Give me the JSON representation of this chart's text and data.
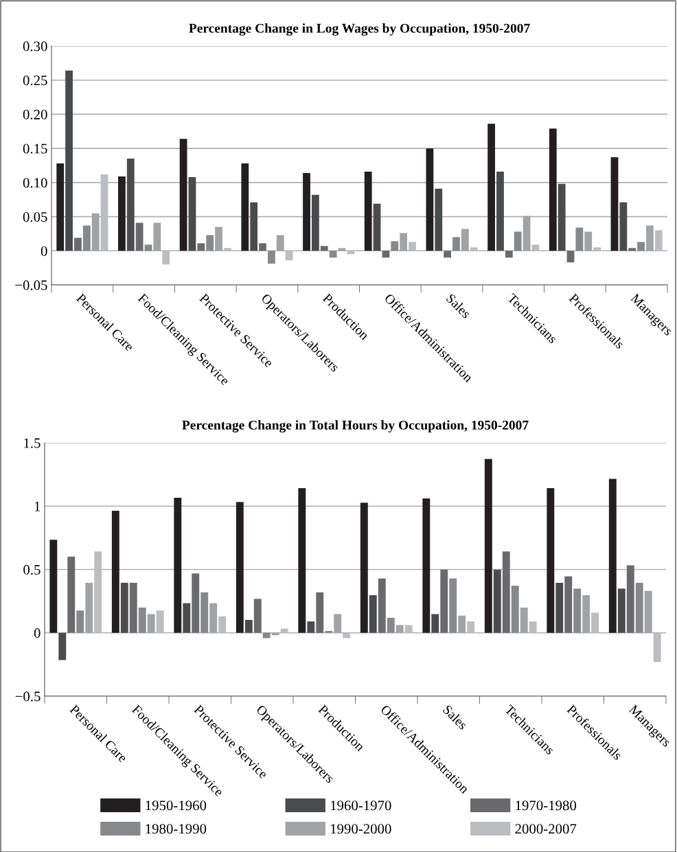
{
  "chart_data": [
    {
      "type": "bar",
      "title": "Percentage Change in Log Wages by Occupation, 1950-2007",
      "categories": [
        "Personal Care",
        "Food/Cleaning Service",
        "Protective Service",
        "Operators/Laborers",
        "Production",
        "Office/Administration",
        "Sales",
        "Technicians",
        "Professionals",
        "Managers"
      ],
      "series": [
        {
          "color": "#231f20",
          "values": [
            0.128,
            0.109,
            0.164,
            0.128,
            0.114,
            0.116,
            0.15,
            0.186,
            0.179,
            0.137
          ]
        },
        {
          "color": "#4a4b4d",
          "values": [
            0.264,
            0.135,
            0.108,
            0.071,
            0.082,
            0.069,
            0.091,
            0.116,
            0.098,
            0.071
          ]
        },
        {
          "color": "#6a6a6c",
          "values": [
            0.019,
            0.041,
            0.011,
            0.011,
            0.007,
            -0.01,
            -0.01,
            -0.01,
            -0.017,
            0.004
          ]
        },
        {
          "color": "#87888b",
          "values": [
            0.037,
            0.009,
            0.023,
            -0.019,
            -0.01,
            0.014,
            0.02,
            0.028,
            0.034,
            0.013
          ]
        },
        {
          "color": "#a2a3a6",
          "values": [
            0.055,
            0.041,
            0.035,
            0.023,
            0.004,
            0.026,
            0.032,
            0.051,
            0.028,
            0.037
          ]
        },
        {
          "color": "#bcbdc0",
          "values": [
            0.112,
            -0.02,
            0.004,
            -0.014,
            -0.005,
            0.013,
            0.005,
            0.009,
            0.005,
            0.03
          ]
        }
      ],
      "ylim": [
        -0.05,
        0.3
      ],
      "yticks": [
        {
          "value": -0.05,
          "label": "−0.05"
        },
        0,
        {
          "value": 0.05,
          "label": "0.05"
        },
        {
          "value": 0.1,
          "label": "0.10"
        },
        {
          "value": 0.15,
          "label": "0.15"
        },
        {
          "value": 0.2,
          "label": "0.20"
        },
        {
          "value": 0.25,
          "label": "0.25"
        },
        {
          "value": 0.3,
          "label": "0.30"
        }
      ],
      "grid": "y"
    },
    {
      "type": "bar",
      "title": "Percentage Change in Total Hours by Occupation, 1950-2007",
      "categories": [
        "Personal Care",
        "Food/Cleaning Service",
        "Protective Service",
        "Operators/Laborers",
        "Production",
        "Office/Administration",
        "Sales",
        "Technicians",
        "Professionals",
        "Managers"
      ],
      "series": [
        {
          "name": "1950-1960",
          "color": "#231f20",
          "values": [
            0.734,
            0.964,
            1.067,
            1.033,
            1.142,
            1.027,
            1.061,
            1.372,
            1.142,
            1.216
          ]
        },
        {
          "name": "1960-1970",
          "color": "#4a4b4d",
          "values": [
            -0.215,
            0.395,
            0.234,
            0.102,
            0.09,
            0.297,
            0.148,
            0.498,
            0.395,
            0.349
          ]
        },
        {
          "name": "1970-1980",
          "color": "#6a6a6c",
          "values": [
            0.602,
            0.395,
            0.469,
            0.268,
            0.32,
            0.429,
            0.498,
            0.642,
            0.446,
            0.533
          ]
        },
        {
          "name": "1980-1990",
          "color": "#87888b",
          "values": [
            0.176,
            0.199,
            0.32,
            -0.042,
            0.015,
            0.119,
            0.429,
            0.372,
            0.349,
            0.395
          ]
        },
        {
          "name": "1990-2000",
          "color": "#a2a3a6",
          "values": [
            0.395,
            0.148,
            0.234,
            -0.019,
            0.148,
            0.061,
            0.136,
            0.199,
            0.297,
            0.331
          ]
        },
        {
          "name": "2000-2007",
          "color": "#bcbdc0",
          "values": [
            0.642,
            0.176,
            0.13,
            0.033,
            -0.042,
            0.061,
            0.09,
            0.09,
            0.159,
            -0.23
          ]
        }
      ],
      "ylim": [
        -0.5,
        1.5
      ],
      "yticks": [
        {
          "value": -0.5,
          "label": "−0.5"
        },
        0,
        0.5,
        1,
        1.5
      ],
      "grid": "y",
      "legend": "bottom"
    }
  ]
}
